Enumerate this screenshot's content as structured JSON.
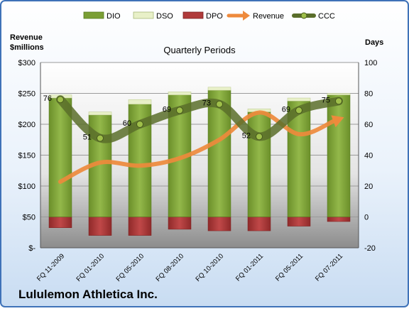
{
  "chart_data": {
    "type": "bar",
    "title": "Quarterly Periods",
    "company": "Lululemon Athletica Inc.",
    "left_axis_label_line1": "Revenue",
    "left_axis_label_line2": "$millions",
    "right_axis_label": "Days",
    "categories": [
      "FQ 11-2009",
      "FQ 01-2010",
      "FQ 05-2010",
      "FQ 08-2010",
      "FQ 10-2010",
      "FQ 01-2011",
      "FQ 05-2011",
      "FQ 07-2011"
    ],
    "left_ticks": [
      "$-",
      "$50",
      "$100",
      "$150",
      "$200",
      "$250",
      "$300"
    ],
    "right_ticks": [
      "-20",
      "0",
      "20",
      "40",
      "60",
      "80",
      "100"
    ],
    "ylim_left": [
      0,
      300
    ],
    "ylim_right": [
      -20,
      100
    ],
    "legend_position": "top",
    "series": [
      {
        "name": "DIO",
        "axis": "right",
        "kind": "bar",
        "values": [
          77,
          66,
          73,
          79,
          82,
          68,
          75,
          79
        ]
      },
      {
        "name": "DSO",
        "axis": "right",
        "kind": "bar-stack",
        "values": [
          2,
          2,
          3,
          2,
          2,
          2,
          2,
          1
        ]
      },
      {
        "name": "DPO",
        "axis": "right",
        "kind": "bar-negative",
        "values": [
          -7,
          -12,
          -12,
          -8,
          -9,
          -9,
          -6,
          -3
        ]
      },
      {
        "name": "Revenue",
        "axis": "left",
        "kind": "line",
        "values": [
          107,
          138,
          133,
          145,
          175,
          219,
          184,
          208
        ]
      },
      {
        "name": "CCC",
        "axis": "right",
        "kind": "line",
        "values": [
          76,
          51,
          60,
          69,
          73,
          52,
          69,
          75
        ]
      }
    ],
    "ccc_labels": [
      "76",
      "51",
      "60",
      "69",
      "73",
      "52",
      "69",
      "75"
    ],
    "colors": {
      "dio": "#7a9e34",
      "dso": "#e8f0c8",
      "dpo": "#b03a3a",
      "revenue": "#ee8a3c",
      "ccc": "#5a6e2a",
      "frame": "#3f72b8",
      "background_top": "#ffffff",
      "background_bottom": "#c8dcf2"
    }
  }
}
